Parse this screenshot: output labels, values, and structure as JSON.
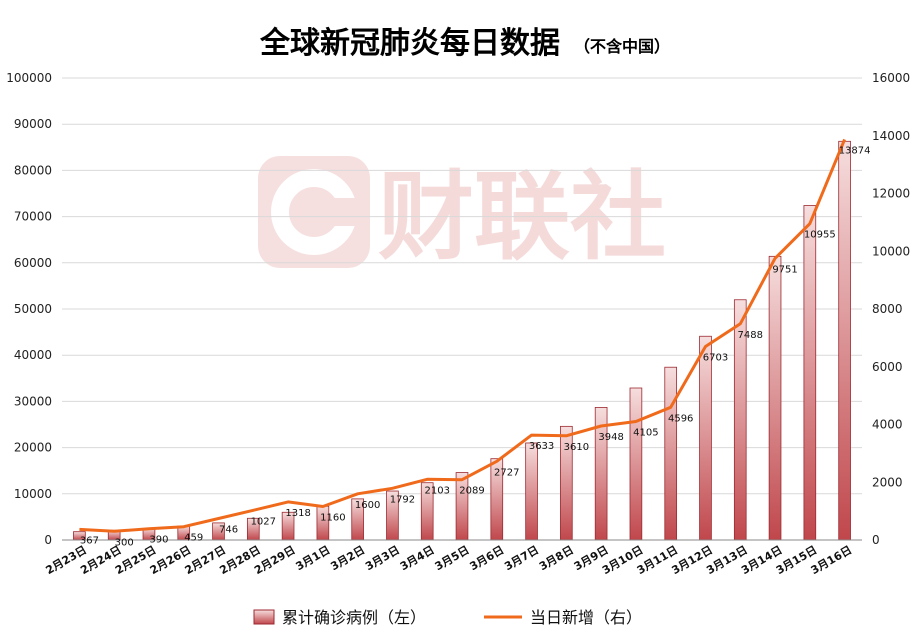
{
  "chart_data": {
    "type": "bar+line",
    "title": "全球新冠肺炎每日数据",
    "subtitle": "（不含中国）",
    "watermark": "财联社",
    "categories": [
      "2月23日",
      "2月24日",
      "2月25日",
      "2月26日",
      "2月27日",
      "2月28日",
      "2月29日",
      "3月1日",
      "3月2日",
      "3月3日",
      "3月4日",
      "3月5日",
      "3月6日",
      "3月7日",
      "3月8日",
      "3月9日",
      "3月10日",
      "3月11日",
      "3月12日",
      "3月13日",
      "3月14日",
      "3月15日",
      "3月16日"
    ],
    "series": [
      {
        "name": "累计确诊病例（左）",
        "type": "bar",
        "axis": "left",
        "values": [
          1800,
          2100,
          2500,
          3000,
          3700,
          4700,
          6000,
          7300,
          8900,
          10600,
          12400,
          14600,
          17600,
          21000,
          24600,
          28700,
          32900,
          37400,
          44100,
          52000,
          61400,
          72400,
          86300
        ]
      },
      {
        "name": "当日新增（右）",
        "type": "line",
        "axis": "right",
        "values": [
          367,
          300,
          390,
          459,
          746,
          1027,
          1318,
          1160,
          1600,
          1792,
          2103,
          2089,
          2727,
          3633,
          3610,
          3948,
          4105,
          4596,
          6703,
          7488,
          9751,
          10955,
          13874
        ],
        "data_labels": [
          "367",
          "300",
          "390",
          "459",
          "746",
          "1027",
          "1318",
          "1160",
          "1600",
          "1792",
          "2103",
          "2089",
          "2727",
          "3633",
          "3610",
          "3948",
          "4105",
          "4596",
          "6703",
          "7488",
          "9751",
          "10955",
          "13874"
        ]
      }
    ],
    "y_left": {
      "min": 0,
      "max": 100000,
      "ticks": [
        "0",
        "10000",
        "20000",
        "30000",
        "40000",
        "50000",
        "60000",
        "70000",
        "80000",
        "90000",
        "100000"
      ]
    },
    "y_right": {
      "min": 0,
      "max": 16000,
      "ticks": [
        "0",
        "2000",
        "4000",
        "6000",
        "8000",
        "10000",
        "12000",
        "14000",
        "16000"
      ]
    },
    "grid": true,
    "legend_position": "bottom",
    "colors": {
      "bar_top": "#f6dede",
      "bar_bottom": "#c0474c",
      "bar_stroke": "#9c2a30",
      "line": "#f06a1c",
      "grid": "#d9d9d9"
    }
  }
}
